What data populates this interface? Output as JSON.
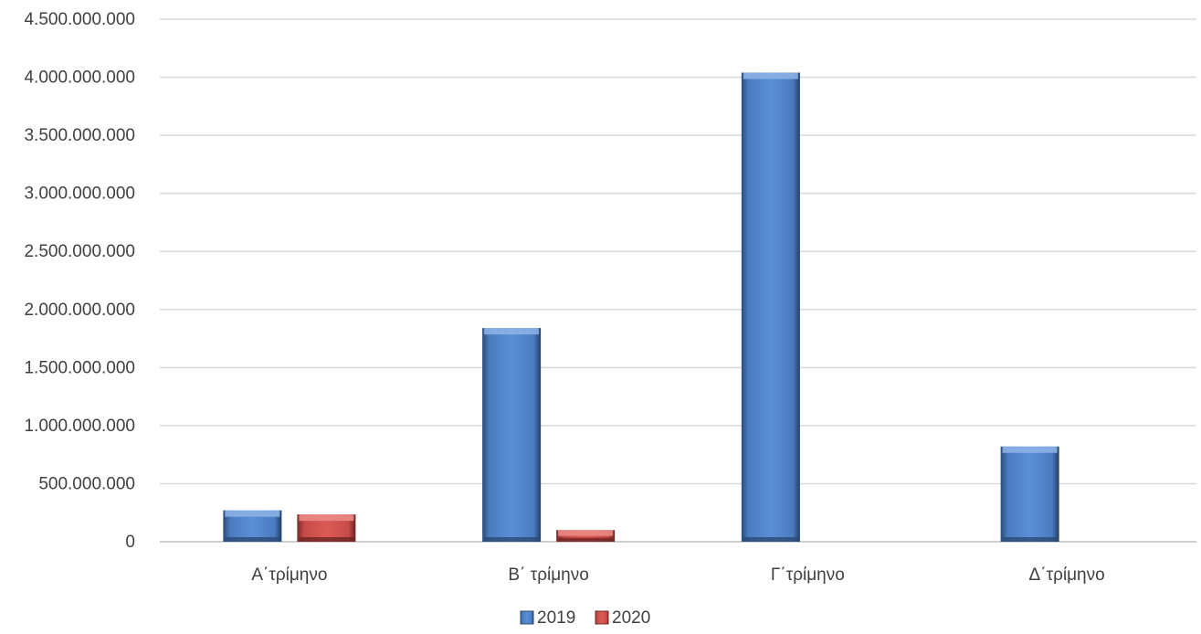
{
  "chart_data": {
    "type": "bar",
    "title": "",
    "xlabel": "",
    "ylabel": "",
    "categories": [
      "Α΄τρίμηνο",
      "Β΄ τρίμηνο",
      "Γ΄τρίμηνο",
      "Δ΄τρίμηνο"
    ],
    "series": [
      {
        "name": "2019",
        "values": [
          270000000,
          1840000000,
          4040000000,
          820000000
        ],
        "color": "#4F81BD"
      },
      {
        "name": "2020",
        "values": [
          235000000,
          100000000,
          null,
          null
        ],
        "color": "#C0504D"
      }
    ],
    "ylim": [
      0,
      4500000000
    ],
    "yticks": [
      0,
      500000000,
      1000000000,
      1500000000,
      2000000000,
      2500000000,
      3000000000,
      3500000000,
      4000000000,
      4500000000
    ],
    "ytick_labels": [
      "0",
      "500.000.000",
      "1.000.000.000",
      "1.500.000.000",
      "2.000.000.000",
      "2.500.000.000",
      "3.000.000.000",
      "3.500.000.000",
      "4.000.000.000",
      "4.500.000.000"
    ],
    "grid": true,
    "legend_position": "bottom"
  }
}
